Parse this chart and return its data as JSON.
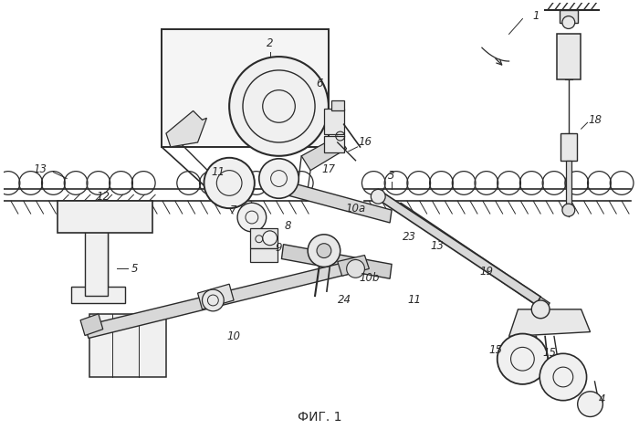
{
  "title": "ФИГ. 1",
  "background_color": "#ffffff",
  "line_color": "#2a2a2a",
  "figsize": [
    7.0,
    4.82
  ],
  "dpi": 100
}
